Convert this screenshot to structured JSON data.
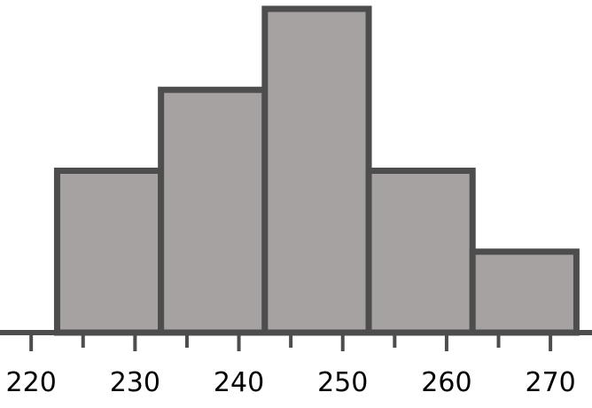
{
  "chart_data": {
    "type": "bar",
    "histogram": true,
    "bins": [
      {
        "start": 222.5,
        "end": 232.5,
        "value": 2
      },
      {
        "start": 232.5,
        "end": 242.5,
        "value": 3
      },
      {
        "start": 242.5,
        "end": 252.5,
        "value": 4
      },
      {
        "start": 252.5,
        "end": 262.5,
        "value": 2
      },
      {
        "start": 262.5,
        "end": 272.5,
        "value": 1
      }
    ],
    "title": "",
    "xlabel": "",
    "ylabel": "",
    "xlim": [
      217,
      274
    ],
    "ylim": [
      0,
      4
    ],
    "x_major_ticks": [
      220,
      230,
      240,
      250,
      260,
      270
    ],
    "x_tick_labels": [
      "220",
      "230",
      "240",
      "250",
      "260",
      "270"
    ],
    "x_minor_ticks": [
      225,
      235,
      245,
      255,
      265
    ],
    "y_axis_visible": false,
    "grid": false,
    "legend": "none"
  },
  "colors": {
    "bar_fill": "#a5a2a1",
    "bar_stroke": "#4d4d4d",
    "axis": "#4d4d4d",
    "text": "#000000"
  }
}
